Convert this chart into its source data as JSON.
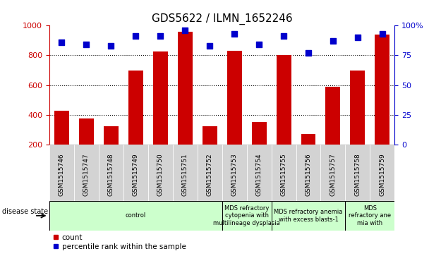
{
  "title": "GDS5622 / ILMN_1652246",
  "samples": [
    "GSM1515746",
    "GSM1515747",
    "GSM1515748",
    "GSM1515749",
    "GSM1515750",
    "GSM1515751",
    "GSM1515752",
    "GSM1515753",
    "GSM1515754",
    "GSM1515755",
    "GSM1515756",
    "GSM1515757",
    "GSM1515758",
    "GSM1515759"
  ],
  "counts": [
    430,
    375,
    325,
    700,
    825,
    960,
    325,
    830,
    350,
    800,
    270,
    590,
    700,
    940
  ],
  "percentile_ranks": [
    86,
    84,
    83,
    91,
    91,
    96,
    83,
    93,
    84,
    91,
    77,
    87,
    90,
    93
  ],
  "ylim_left": [
    200,
    1000
  ],
  "ylim_right": [
    0,
    100
  ],
  "yticks_left": [
    200,
    400,
    600,
    800,
    1000
  ],
  "yticks_right": [
    0,
    25,
    50,
    75,
    100
  ],
  "ytick_labels_right": [
    "0",
    "25",
    "50",
    "75",
    "100%"
  ],
  "bar_color": "#cc0000",
  "dot_color": "#0000cc",
  "title_fontsize": 11,
  "bar_width": 0.6,
  "dot_size": 40,
  "figsize": [
    6.08,
    3.63
  ],
  "dpi": 100,
  "groups": [
    {
      "label": "control",
      "start": 0,
      "end": 7
    },
    {
      "label": "MDS refractory\ncytopenia with\nmultilineage dysplasia",
      "start": 7,
      "end": 9
    },
    {
      "label": "MDS refractory anemia\nwith excess blasts-1",
      "start": 9,
      "end": 12
    },
    {
      "label": "MDS\nrefractory ane\nmia with",
      "start": 12,
      "end": 14
    }
  ],
  "group_color": "#ccffcc",
  "cell_color": "#d3d3d3",
  "legend_items": [
    "count",
    "percentile rank within the sample"
  ]
}
